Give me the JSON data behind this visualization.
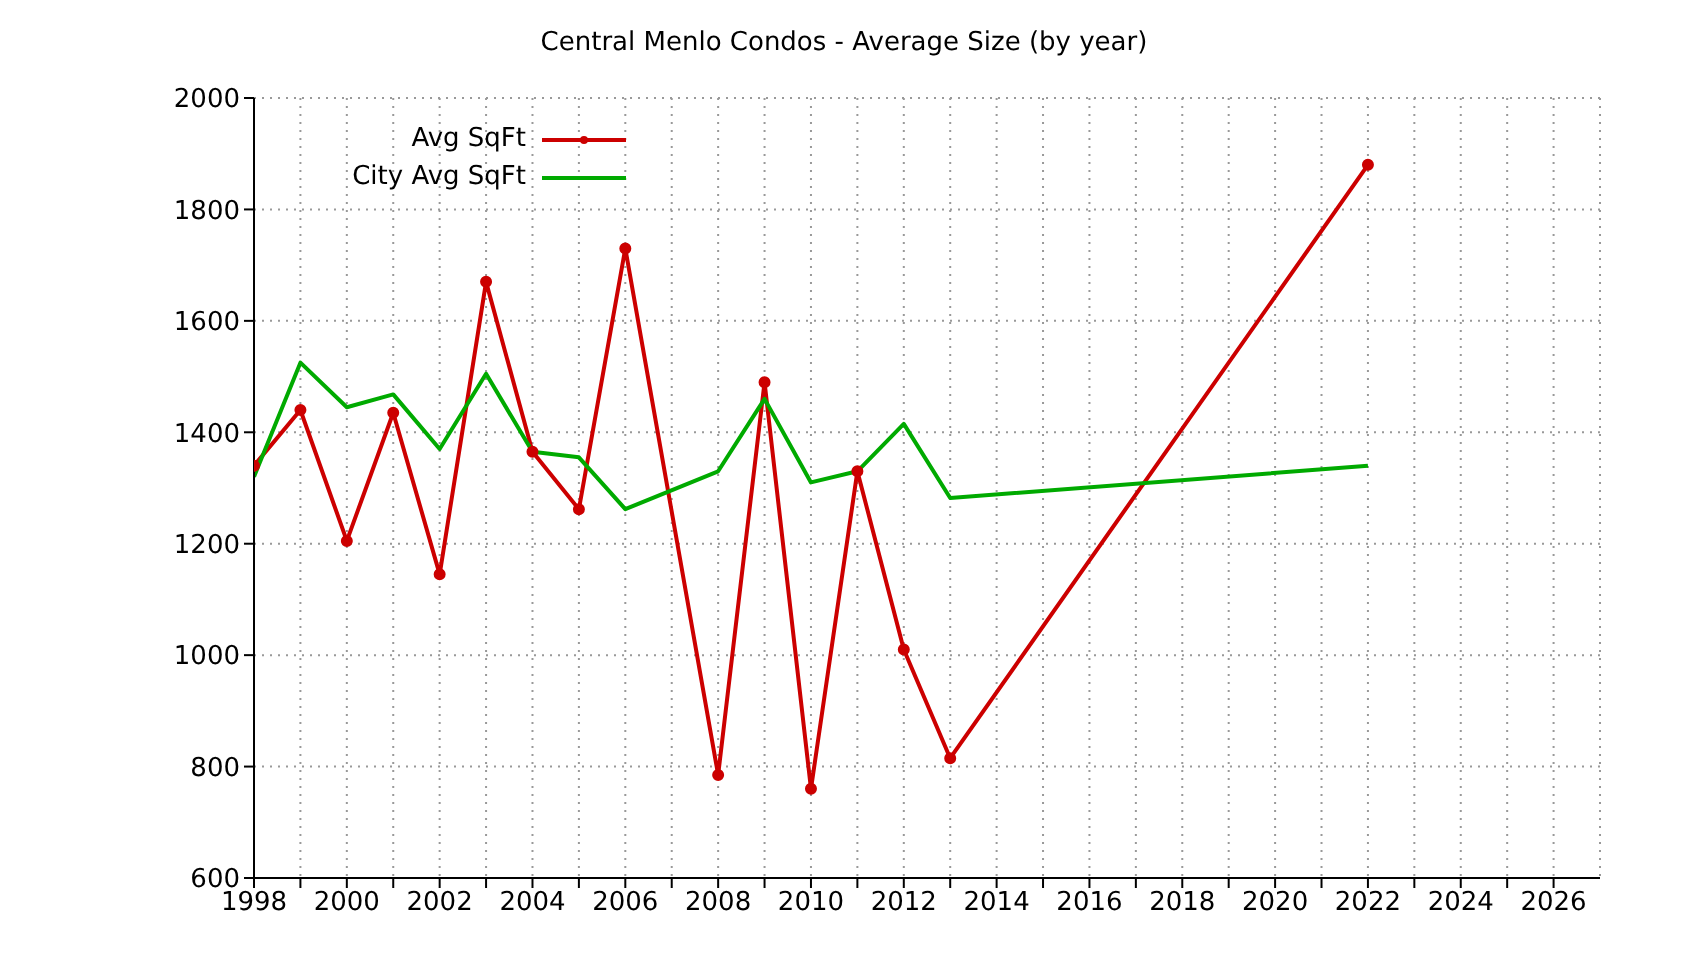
{
  "chart_data": {
    "type": "line",
    "title": "Central Menlo Condos - Average Size (by year)",
    "x": [
      1998,
      1999,
      2000,
      2001,
      2002,
      2003,
      2004,
      2005,
      2006,
      2008,
      2009,
      2010,
      2011,
      2012,
      2013,
      2022
    ],
    "series": [
      {
        "name": "Avg SqFt",
        "color": "#cc0000",
        "marker": "circle",
        "values": [
          1340,
          1440,
          1205,
          1435,
          1145,
          1670,
          1365,
          1262,
          1730,
          785,
          1490,
          760,
          1330,
          1010,
          815,
          1880
        ]
      },
      {
        "name": "City Avg SqFt",
        "color": "#00aa00",
        "marker": "none",
        "values": [
          1320,
          1525,
          1445,
          1468,
          1370,
          1505,
          1365,
          1355,
          1262,
          1330,
          1460,
          1310,
          1330,
          1415,
          1282,
          1340
        ]
      }
    ],
    "xlim": [
      1998,
      2027
    ],
    "xticks": [
      1998,
      {
        "value": 1999,
        "label": null
      },
      2000,
      {
        "value": 2001,
        "label": null
      },
      2002,
      {
        "value": 2003,
        "label": null
      },
      2004,
      {
        "value": 2005,
        "label": null
      },
      2006,
      {
        "value": 2007,
        "label": null
      },
      2008,
      {
        "value": 2009,
        "label": null
      },
      2010,
      {
        "value": 2011,
        "label": null
      },
      2012,
      {
        "value": 2013,
        "label": null
      },
      2014,
      {
        "value": 2015,
        "label": null
      },
      2016,
      {
        "value": 2017,
        "label": null
      },
      2018,
      {
        "value": 2019,
        "label": null
      },
      2020,
      {
        "value": 2021,
        "label": null
      },
      2022,
      {
        "value": 2023,
        "label": null
      },
      2024,
      {
        "value": 2025,
        "label": null
      },
      2026
    ],
    "ylim": [
      600,
      2000
    ],
    "yticks": [
      600,
      800,
      1000,
      1200,
      1400,
      1600,
      1800,
      2000
    ],
    "grid": true,
    "legend": "top left",
    "line_style": "solid"
  }
}
